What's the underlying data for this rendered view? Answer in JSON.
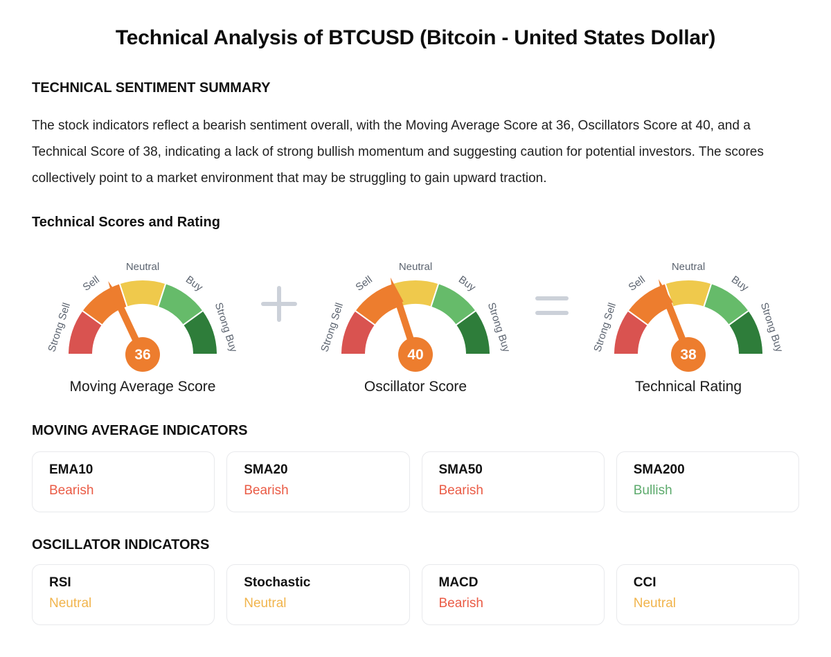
{
  "page": {
    "title": "Technical Analysis of BTCUSD (Bitcoin - United States Dollar)"
  },
  "summary": {
    "heading": "TECHNICAL SENTIMENT SUMMARY",
    "body": "The stock indicators reflect a bearish sentiment overall, with the Moving Average Score at 36, Oscillators Score at 40, and a Technical Score of 38, indicating a lack of strong bullish momentum and suggesting caution for potential investors. The scores collectively point to a market environment that may be struggling to gain upward traction."
  },
  "scores_section": {
    "heading": "Technical Scores and Rating",
    "operators": {
      "plus": "+",
      "equals": "="
    },
    "operator_color": "#ccd1d9"
  },
  "chart_data": {
    "type": "gauge",
    "min": 0,
    "max": 100,
    "gauges": [
      {
        "label": "Moving Average Score",
        "value": 36
      },
      {
        "label": "Oscillator Score",
        "value": 40
      },
      {
        "label": "Technical Rating",
        "value": 38
      }
    ],
    "segments": [
      {
        "label": "Strong Sell",
        "color": "#D95350",
        "from": 0,
        "to": 36
      },
      {
        "label": "Sell",
        "color": "#ED7D2E",
        "from": 36,
        "to": 72
      },
      {
        "label": "Neutral",
        "color": "#EFC94C",
        "from": 72,
        "to": 108
      },
      {
        "label": "Buy",
        "color": "#66BB6A",
        "from": 108,
        "to": 144
      },
      {
        "label": "Strong Buy",
        "color": "#2E7D3A",
        "from": 144,
        "to": 180
      }
    ],
    "needle_color": "#ED7D2E",
    "label_color": "#5C6470",
    "value_text_color": "#ffffff"
  },
  "moving_average_section": {
    "heading": "MOVING AVERAGE INDICATORS",
    "cards": [
      {
        "name": "EMA10",
        "status": "Bearish"
      },
      {
        "name": "SMA20",
        "status": "Bearish"
      },
      {
        "name": "SMA50",
        "status": "Bearish"
      },
      {
        "name": "SMA200",
        "status": "Bullish"
      }
    ]
  },
  "oscillator_section": {
    "heading": "OSCILLATOR INDICATORS",
    "cards": [
      {
        "name": "RSI",
        "status": "Neutral"
      },
      {
        "name": "Stochastic",
        "status": "Neutral"
      },
      {
        "name": "MACD",
        "status": "Bearish"
      },
      {
        "name": "CCI",
        "status": "Neutral"
      }
    ]
  },
  "status_colors": {
    "Bearish": "#EA5B45",
    "Bullish": "#5CAA6C",
    "Neutral": "#F1B44C"
  }
}
